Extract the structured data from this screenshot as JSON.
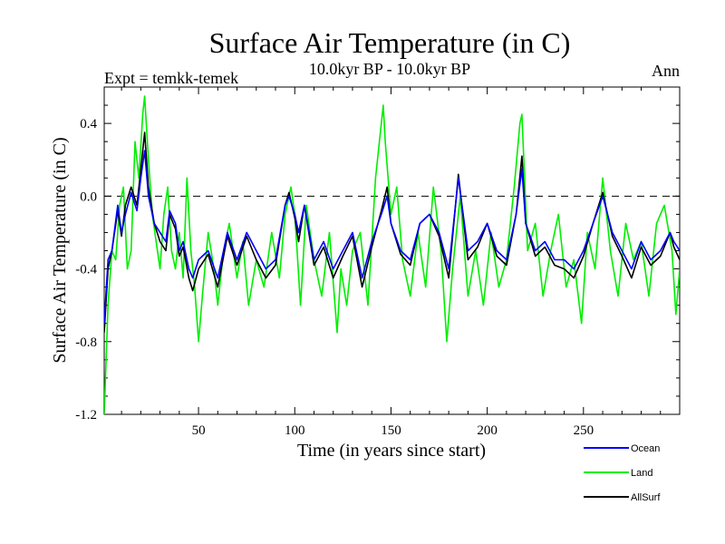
{
  "chart_data": {
    "type": "line",
    "title": "Surface Air Temperature (in C)",
    "subtitle": "10.0kyr BP - 10.0kyr BP",
    "experiment_label": "Expt = temkk-temek",
    "season_label": "Ann",
    "xlabel": "Time (in years since start)",
    "ylabel": "Surface Air Temperature (in C)",
    "xlim": [
      1,
      300
    ],
    "ylim": [
      -1.2,
      0.6
    ],
    "x_ticks": [
      50,
      100,
      150,
      200,
      250
    ],
    "x_tick_labels": [
      "50",
      "100",
      "150",
      "200",
      "250"
    ],
    "y_ticks": [
      -1.2,
      -0.8,
      -0.4,
      0.0,
      0.4
    ],
    "y_tick_labels": [
      "-1.2",
      "-0.8",
      "-0.4",
      "0.0",
      "0.4"
    ],
    "reference_line": 0.0,
    "legend_position": "bottom-right",
    "series": [
      {
        "name": "Ocean",
        "color": "#0000ff",
        "x": [
          1,
          3,
          5,
          8,
          10,
          12,
          15,
          18,
          20,
          22,
          24,
          27,
          30,
          33,
          35,
          38,
          40,
          42,
          45,
          47,
          50,
          55,
          60,
          65,
          70,
          75,
          80,
          85,
          90,
          95,
          97,
          100,
          102,
          105,
          110,
          115,
          120,
          125,
          130,
          135,
          140,
          145,
          148,
          150,
          155,
          160,
          165,
          170,
          175,
          180,
          185,
          190,
          195,
          200,
          205,
          210,
          215,
          218,
          220,
          225,
          230,
          235,
          240,
          245,
          250,
          255,
          260,
          265,
          270,
          275,
          280,
          285,
          290,
          295,
          297,
          300
        ],
        "values": [
          -0.7,
          -0.35,
          -0.3,
          -0.05,
          -0.2,
          -0.1,
          0.02,
          -0.08,
          0.1,
          0.25,
          0.0,
          -0.15,
          -0.2,
          -0.25,
          -0.08,
          -0.15,
          -0.3,
          -0.25,
          -0.4,
          -0.45,
          -0.35,
          -0.3,
          -0.45,
          -0.2,
          -0.35,
          -0.2,
          -0.3,
          -0.4,
          -0.35,
          -0.05,
          0.0,
          -0.1,
          -0.2,
          -0.05,
          -0.35,
          -0.25,
          -0.4,
          -0.3,
          -0.2,
          -0.45,
          -0.25,
          -0.1,
          0.0,
          -0.15,
          -0.3,
          -0.35,
          -0.15,
          -0.1,
          -0.2,
          -0.4,
          0.1,
          -0.3,
          -0.25,
          -0.15,
          -0.3,
          -0.35,
          -0.1,
          0.15,
          -0.15,
          -0.3,
          -0.25,
          -0.35,
          -0.35,
          -0.4,
          -0.3,
          -0.15,
          0.0,
          -0.2,
          -0.3,
          -0.4,
          -0.25,
          -0.35,
          -0.3,
          -0.2,
          -0.25,
          -0.3
        ]
      },
      {
        "name": "Land",
        "color": "#00ee00",
        "x": [
          1,
          3,
          5,
          7,
          9,
          11,
          13,
          15,
          17,
          19,
          21,
          22,
          24,
          26,
          28,
          30,
          32,
          34,
          36,
          38,
          40,
          42,
          44,
          46,
          48,
          50,
          52,
          55,
          58,
          60,
          63,
          66,
          70,
          73,
          76,
          80,
          84,
          88,
          92,
          95,
          98,
          100,
          103,
          106,
          110,
          114,
          118,
          122,
          124,
          127,
          130,
          134,
          138,
          142,
          146,
          147,
          150,
          153,
          156,
          160,
          164,
          168,
          172,
          176,
          179,
          182,
          186,
          190,
          194,
          198,
          202,
          206,
          210,
          214,
          217,
          218,
          221,
          225,
          229,
          233,
          237,
          241,
          245,
          249,
          252,
          256,
          260,
          264,
          268,
          272,
          276,
          280,
          284,
          288,
          292,
          296,
          298,
          300
        ],
        "values": [
          -1.2,
          -0.6,
          -0.3,
          -0.35,
          -0.05,
          0.05,
          -0.4,
          -0.3,
          0.3,
          0.1,
          0.45,
          0.55,
          0.2,
          -0.1,
          -0.25,
          -0.4,
          -0.1,
          0.05,
          -0.3,
          -0.4,
          -0.2,
          -0.45,
          0.1,
          -0.3,
          -0.5,
          -0.8,
          -0.55,
          -0.2,
          -0.4,
          -0.6,
          -0.3,
          -0.15,
          -0.45,
          -0.25,
          -0.6,
          -0.35,
          -0.5,
          -0.2,
          -0.45,
          -0.1,
          0.05,
          -0.1,
          -0.6,
          -0.05,
          -0.35,
          -0.55,
          -0.2,
          -0.75,
          -0.4,
          -0.6,
          -0.3,
          -0.2,
          -0.6,
          0.1,
          0.5,
          0.3,
          -0.1,
          0.05,
          -0.35,
          -0.55,
          -0.2,
          -0.5,
          0.05,
          -0.3,
          -0.8,
          -0.4,
          0.0,
          -0.55,
          -0.3,
          -0.6,
          -0.2,
          -0.5,
          -0.35,
          0.05,
          0.4,
          0.45,
          -0.3,
          -0.15,
          -0.55,
          -0.3,
          -0.1,
          -0.5,
          -0.35,
          -0.7,
          -0.2,
          -0.4,
          0.1,
          -0.3,
          -0.55,
          -0.15,
          -0.35,
          -0.25,
          -0.55,
          -0.15,
          -0.05,
          -0.3,
          -0.65,
          -0.4
        ]
      },
      {
        "name": "AllSurf",
        "color": "#000000",
        "x": [
          1,
          3,
          5,
          8,
          10,
          12,
          15,
          18,
          20,
          22,
          24,
          27,
          30,
          33,
          35,
          38,
          40,
          42,
          45,
          47,
          50,
          55,
          60,
          65,
          70,
          75,
          80,
          85,
          90,
          95,
          97,
          100,
          102,
          105,
          110,
          115,
          120,
          125,
          130,
          135,
          140,
          145,
          148,
          150,
          155,
          160,
          165,
          170,
          175,
          180,
          185,
          190,
          195,
          200,
          205,
          210,
          215,
          218,
          220,
          225,
          230,
          235,
          240,
          245,
          250,
          255,
          260,
          265,
          270,
          275,
          280,
          285,
          290,
          295,
          297,
          300
        ],
        "values": [
          -0.75,
          -0.4,
          -0.3,
          -0.08,
          -0.22,
          -0.05,
          0.05,
          -0.05,
          0.15,
          0.35,
          0.05,
          -0.15,
          -0.25,
          -0.3,
          -0.1,
          -0.18,
          -0.33,
          -0.28,
          -0.45,
          -0.52,
          -0.4,
          -0.32,
          -0.5,
          -0.22,
          -0.38,
          -0.22,
          -0.35,
          -0.45,
          -0.38,
          -0.05,
          0.02,
          -0.12,
          -0.25,
          -0.05,
          -0.38,
          -0.28,
          -0.45,
          -0.33,
          -0.22,
          -0.5,
          -0.28,
          -0.08,
          0.05,
          -0.15,
          -0.32,
          -0.38,
          -0.15,
          -0.1,
          -0.22,
          -0.45,
          0.12,
          -0.35,
          -0.28,
          -0.15,
          -0.33,
          -0.38,
          -0.1,
          0.22,
          -0.15,
          -0.33,
          -0.28,
          -0.38,
          -0.4,
          -0.45,
          -0.33,
          -0.15,
          0.02,
          -0.22,
          -0.33,
          -0.45,
          -0.28,
          -0.38,
          -0.33,
          -0.2,
          -0.28,
          -0.35
        ]
      }
    ]
  }
}
